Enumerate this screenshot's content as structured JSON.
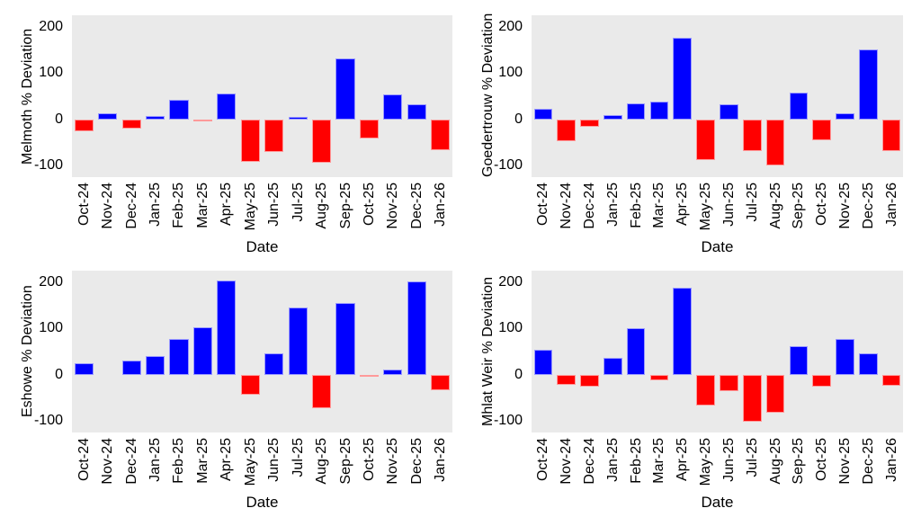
{
  "figure": {
    "background": "#ffffff",
    "plot_background": "#eaeaea",
    "positive_color": "#0000ff",
    "negative_color": "#ff0000",
    "text_color": "#000000"
  },
  "chart_data": [
    {
      "type": "bar",
      "title": "",
      "ylabel": "Melmoth % Deviation",
      "xlabel": "Date",
      "categories": [
        "Oct-24",
        "Nov-24",
        "Dec-24",
        "Jan-25",
        "Feb-25",
        "Mar-25",
        "Apr-25",
        "May-25",
        "Jun-25",
        "Jul-25",
        "Aug-25",
        "Sep-25",
        "Oct-25",
        "Nov-25",
        "Dec-25",
        "Jan-26"
      ],
      "values": [
        -26,
        14,
        -20,
        8,
        42,
        -3,
        56,
        -92,
        -71,
        6,
        -93,
        131,
        -41,
        54,
        32,
        -66
      ],
      "yticks": [
        200,
        100,
        0,
        -100
      ],
      "ytick_labels": [
        "200",
        "100",
        "0",
        "-100"
      ],
      "ylim": [
        -125,
        225
      ],
      "grid": false,
      "legend": false,
      "color_rule": "blue if value >= 0 else red"
    },
    {
      "type": "bar",
      "title": "",
      "ylabel": "Goedertrouw % Deviation",
      "xlabel": "Date",
      "categories": [
        "Oct-24",
        "Nov-24",
        "Dec-24",
        "Jan-25",
        "Feb-25",
        "Mar-25",
        "Apr-25",
        "May-25",
        "Jun-25",
        "Jul-25",
        "Aug-25",
        "Sep-25",
        "Oct-25",
        "Nov-25",
        "Dec-25",
        "Jan-26"
      ],
      "values": [
        22,
        -48,
        -16,
        10,
        35,
        38,
        177,
        -88,
        33,
        -68,
        -99,
        58,
        -46,
        13,
        151,
        -68
      ],
      "yticks": [
        200,
        100,
        0,
        -100
      ],
      "ytick_labels": [
        "200",
        "100",
        "0",
        "-100"
      ],
      "ylim": [
        -125,
        225
      ],
      "grid": false,
      "legend": false,
      "color_rule": "blue if value >= 0 else red"
    },
    {
      "type": "bar",
      "title": "",
      "ylabel": "Eshowe % Deviation",
      "xlabel": "Date",
      "categories": [
        "Oct-24",
        "Nov-24",
        "Dec-24",
        "Jan-25",
        "Feb-25",
        "Mar-25",
        "Apr-25",
        "May-25",
        "Jun-25",
        "Jul-25",
        "Aug-25",
        "Sep-25",
        "Oct-25",
        "Nov-25",
        "Dec-25",
        "Jan-26"
      ],
      "values": [
        25,
        0,
        31,
        40,
        78,
        103,
        204,
        -43,
        47,
        146,
        -73,
        155,
        -4,
        12,
        201,
        -34
      ],
      "yticks": [
        200,
        100,
        0,
        -100
      ],
      "ytick_labels": [
        "200",
        "100",
        "0",
        "-100"
      ],
      "ylim": [
        -125,
        225
      ],
      "grid": false,
      "legend": false,
      "color_rule": "blue if value >= 0 else red"
    },
    {
      "type": "bar",
      "title": "",
      "ylabel": "Mhlat Weir % Deviation",
      "xlabel": "Date",
      "categories": [
        "Oct-24",
        "Nov-24",
        "Dec-24",
        "Jan-25",
        "Feb-25",
        "Mar-25",
        "Apr-25",
        "May-25",
        "Jun-25",
        "Jul-25",
        "Aug-25",
        "Sep-25",
        "Oct-25",
        "Nov-25",
        "Dec-25",
        "Jan-26"
      ],
      "values": [
        53,
        -22,
        -25,
        36,
        100,
        -12,
        188,
        -66,
        -36,
        -101,
        -83,
        62,
        -26,
        78,
        46,
        -23
      ],
      "yticks": [
        200,
        100,
        0,
        -100
      ],
      "ytick_labels": [
        "200",
        "100",
        "0",
        "-100"
      ],
      "ylim": [
        -125,
        225
      ],
      "grid": false,
      "legend": false,
      "color_rule": "blue if value >= 0 else red"
    }
  ]
}
